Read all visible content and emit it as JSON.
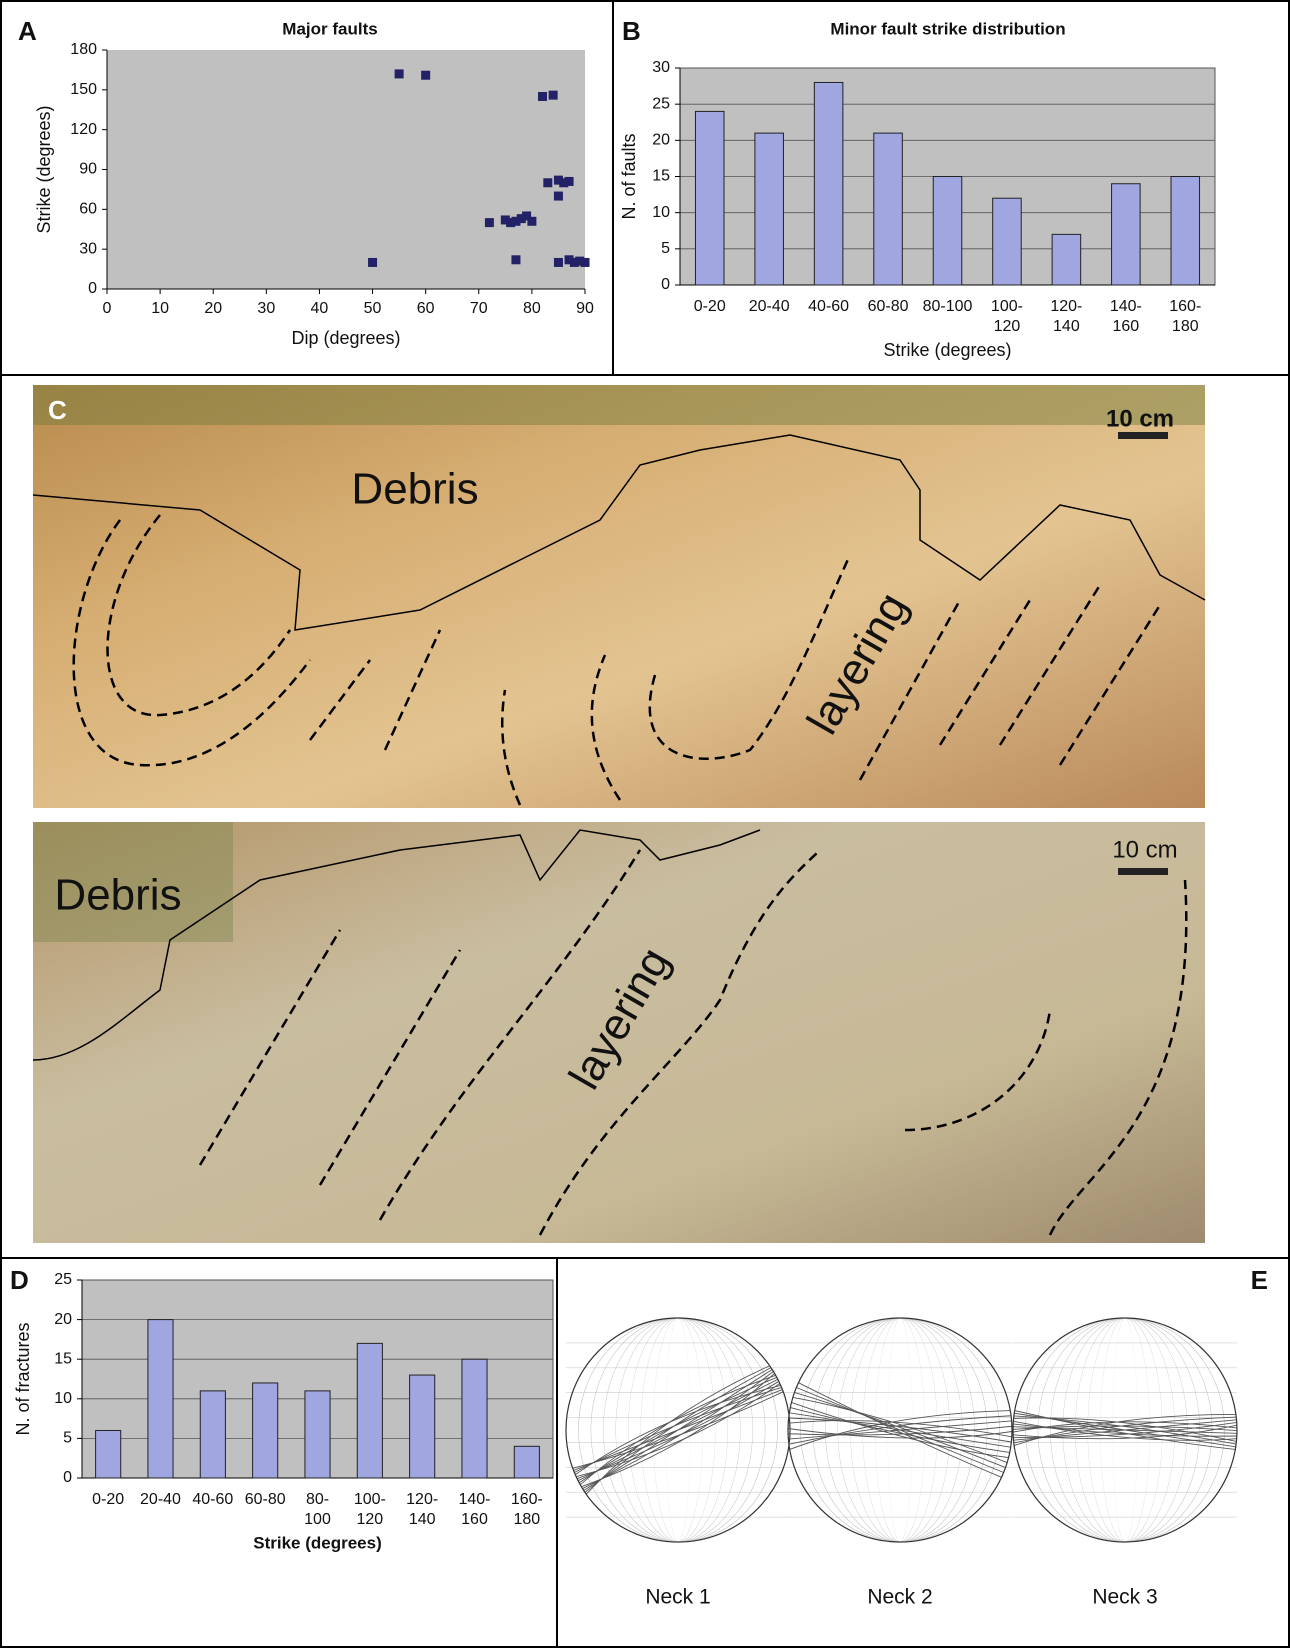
{
  "panel_labels": [
    "A",
    "B",
    "C",
    "D",
    "E"
  ],
  "photo": {
    "top": {
      "debris": "Debris",
      "layering": "layering",
      "scale": "10 cm"
    },
    "bottom": {
      "debris": "Debris",
      "layering": "layering",
      "scale": "10 cm"
    }
  },
  "stereonets": {
    "labels": [
      "Neck 1",
      "Neck 2",
      "Neck 3"
    ]
  },
  "chart_data": [
    {
      "type": "scatter",
      "title": "Major faults",
      "x_label": "Dip (degrees)",
      "y_label": "Strike (degrees)",
      "x": [
        50,
        55,
        60,
        72,
        75,
        76,
        77,
        77,
        78,
        79,
        80,
        82,
        83,
        84,
        85,
        85,
        85,
        86,
        87,
        87,
        88,
        89,
        90
      ],
      "values": [
        20,
        162,
        161,
        50,
        52,
        50,
        22,
        51,
        53,
        55,
        51,
        145,
        80,
        146,
        82,
        70,
        20,
        80,
        81,
        22,
        20,
        21,
        20
      ],
      "color": "#232266",
      "xlim": [
        0,
        90
      ],
      "xticks": [
        0,
        10,
        20,
        30,
        40,
        50,
        60,
        70,
        80,
        90
      ],
      "ylim": [
        0,
        180
      ],
      "yticks": [
        0,
        30,
        60,
        90,
        120,
        150,
        180
      ],
      "grid": false
    },
    {
      "type": "bar",
      "title": "Minor fault strike distribution",
      "x_label": "Strike (degrees)",
      "y_label": "N. of faults",
      "categories": [
        "0-20",
        "20-40",
        "40-60",
        "60-80",
        "80-100",
        "100-120",
        "120-140",
        "140-160",
        "160-180"
      ],
      "values": [
        24,
        21,
        28,
        21,
        15,
        12,
        7,
        14,
        15
      ],
      "color": "#9fa6e0",
      "ylim": [
        0,
        30
      ],
      "yticks": [
        0,
        5,
        10,
        15,
        20,
        25,
        30
      ],
      "grid": true
    },
    {
      "type": "bar",
      "x_label": "Strike (degrees)",
      "y_label": "N. of fractures",
      "categories": [
        "0-20",
        "20-40",
        "40-60",
        "60-80",
        "80-100",
        "100-120",
        "120-140",
        "140-160",
        "160-180"
      ],
      "values": [
        6,
        20,
        11,
        12,
        11,
        17,
        13,
        15,
        4
      ],
      "color": "#9fa6e0",
      "ylim": [
        0,
        25
      ],
      "yticks": [
        0,
        5,
        10,
        15,
        20,
        25
      ],
      "grid": true
    }
  ]
}
